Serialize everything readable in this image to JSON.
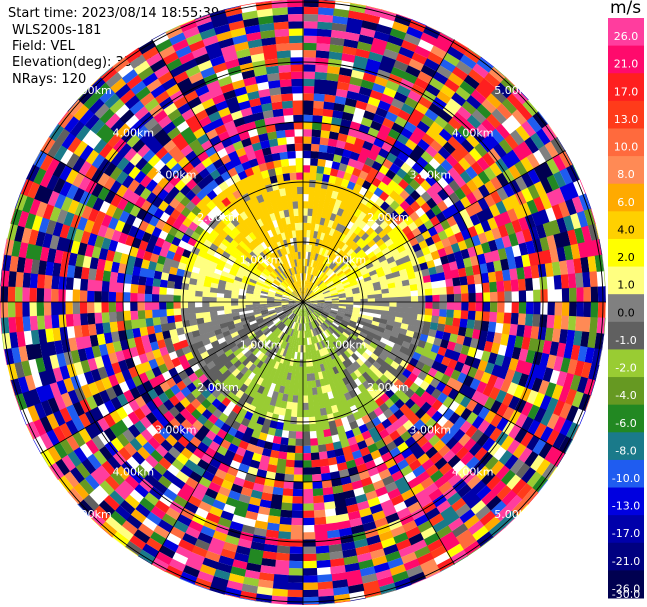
{
  "header": {
    "start_time": "Start time: 2023/08/14 18:55:39",
    "instrument": "WLS200s-181",
    "field": "Field: VEL",
    "elevation": "Elevation(deg): 35.30",
    "nrays": "NRays: 120"
  },
  "colorbar": {
    "unit": "m/s",
    "ticks": [
      "26.0",
      "21.0",
      "17.0",
      "13.0",
      "10.0",
      "8.0",
      "6.0",
      "4.0",
      "2.0",
      "1.0",
      "0.0",
      "-1.0",
      "-2.0",
      "-4.0",
      "-6.0",
      "-8.0",
      "-10.0",
      "-13.0",
      "-17.0",
      "-21.0",
      "-26.0",
      "-30.0"
    ],
    "colors": [
      "#ff3d9e",
      "#ff0a6c",
      "#ff1f1f",
      "#ff3b1a",
      "#ff6a3d",
      "#ff8a55",
      "#ffaa00",
      "#ffd000",
      "#ffff00",
      "#ffff80",
      "#808080",
      "#606060",
      "#99cc33",
      "#669922",
      "#228822",
      "#1a7a8a",
      "#1f5cf0",
      "#0000e0",
      "#0000aa",
      "#000080",
      "#000050"
    ]
  },
  "chart_data": {
    "type": "heatmap",
    "subtype": "polar-ppi",
    "field": "VEL",
    "units": "m/s",
    "n_rays": 120,
    "elevation_deg": 35.3,
    "range_rings": [
      {
        "label": "1.00km"
      },
      {
        "label": "2.00km"
      },
      {
        "label": "3.00km"
      },
      {
        "label": "4.00km"
      },
      {
        "label": "5.00km"
      }
    ],
    "color_scale": {
      "min": -30.0,
      "max": 26.0,
      "boundaries": [
        -30.0,
        -26.0,
        -21.0,
        -17.0,
        -13.0,
        -10.0,
        -8.0,
        -6.0,
        -4.0,
        -2.0,
        -1.0,
        0.0,
        1.0,
        2.0,
        4.0,
        6.0,
        8.0,
        10.0,
        13.0,
        17.0,
        21.0,
        26.0
      ]
    },
    "pattern": {
      "inner_region": "coherent velocities: positive 1 to 4 m/s toward north, near 0 to -2 m/s toward south; noisy gray speckle",
      "outer_region": "noise-dominated random colors beyond about 2 km"
    }
  }
}
